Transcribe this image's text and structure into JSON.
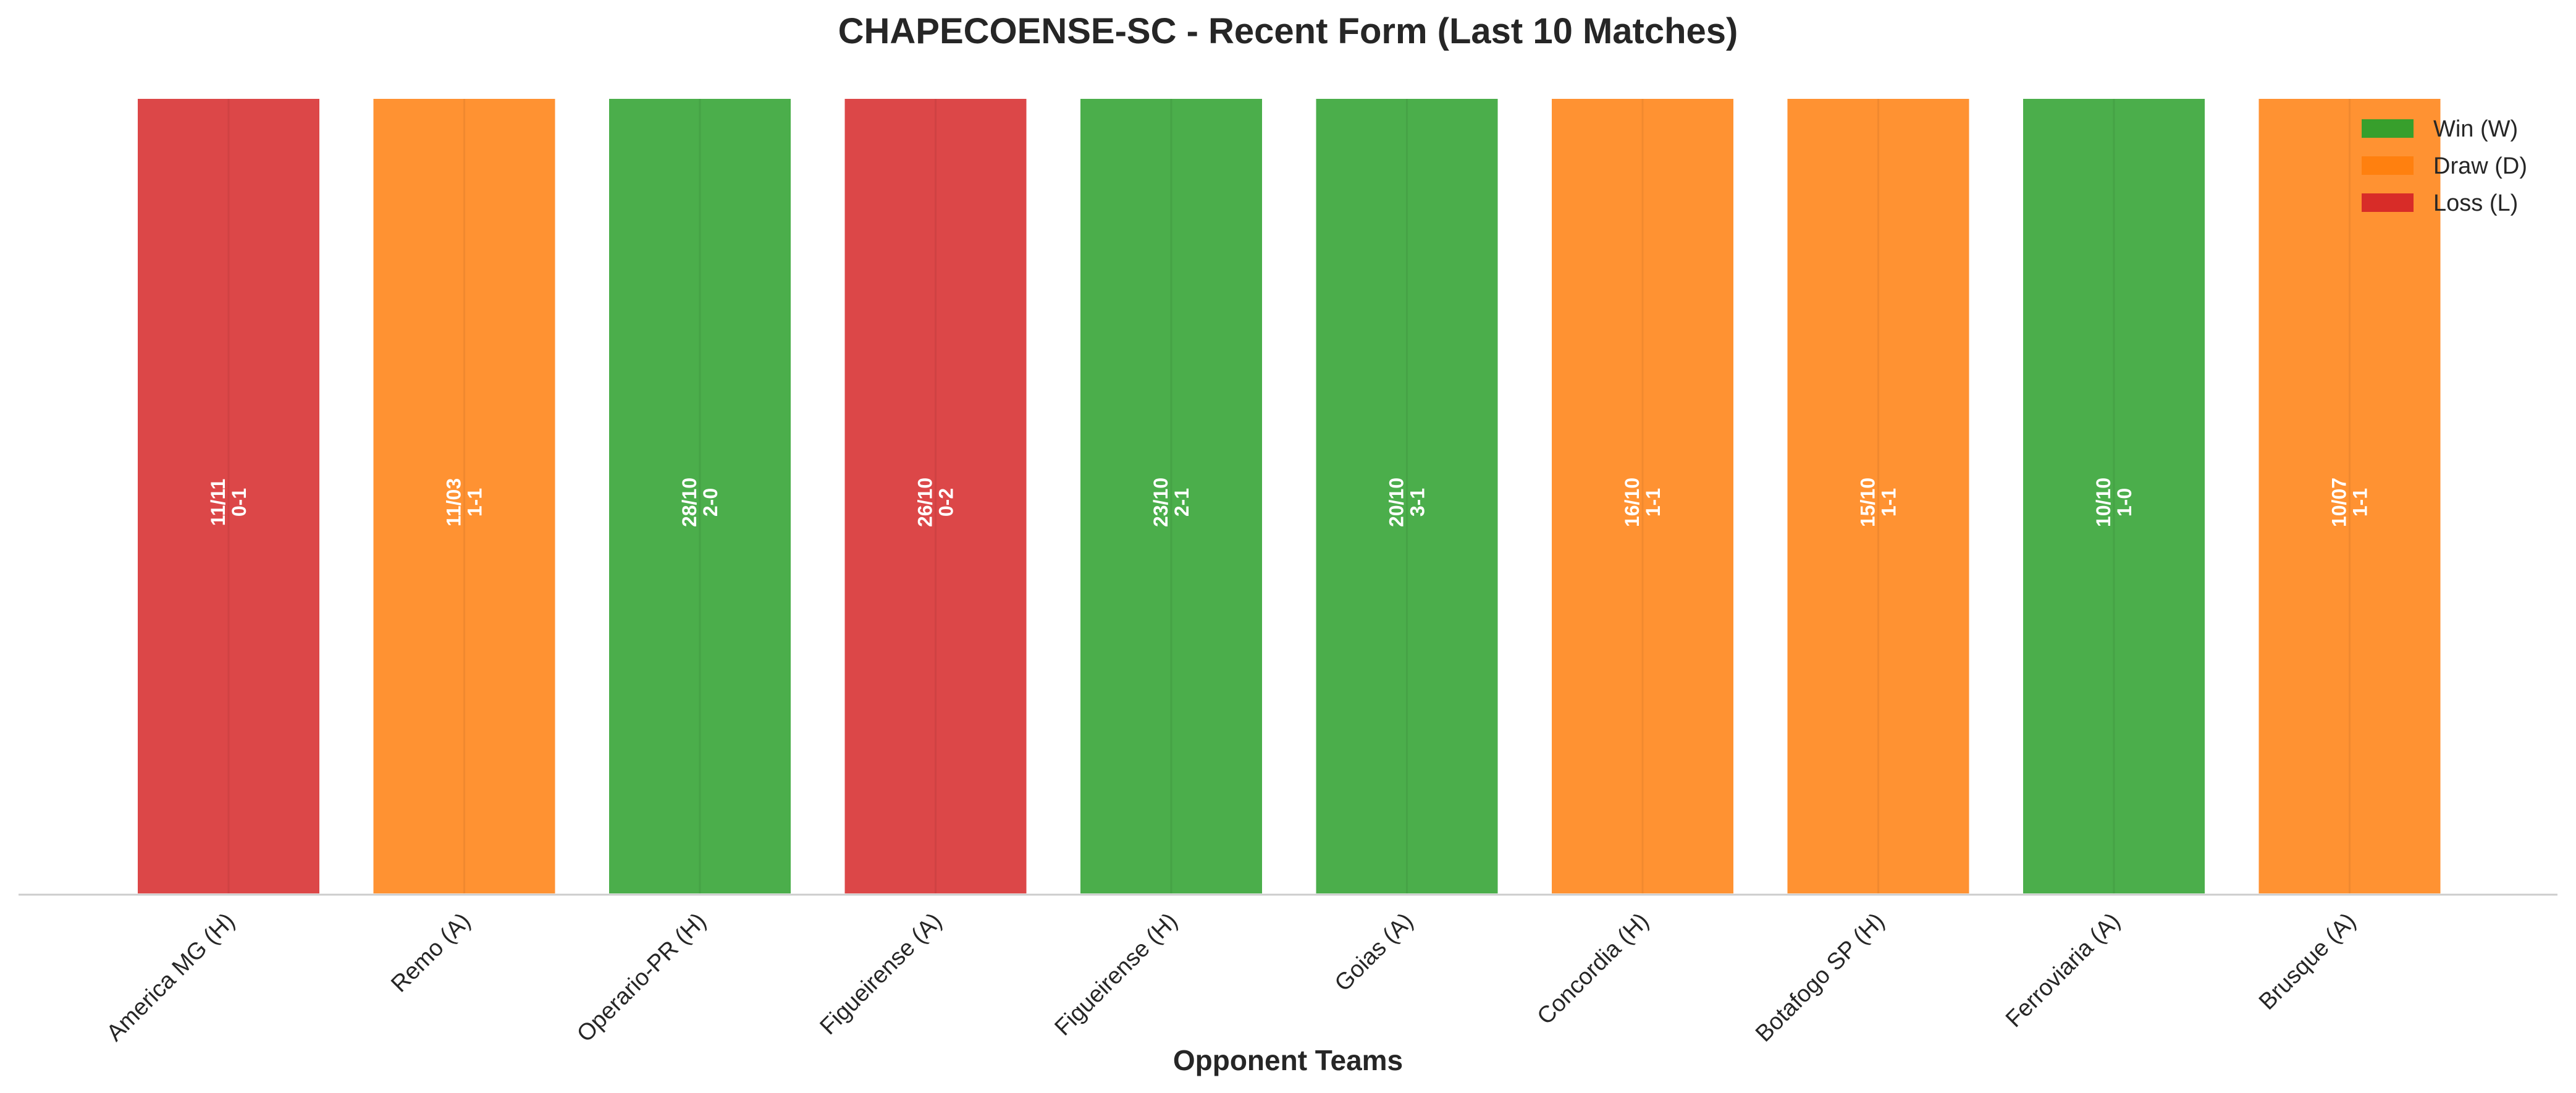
{
  "chart_data": {
    "type": "bar",
    "title": "CHAPECOENSE-SC - Recent Form (Last 10 Matches)",
    "xlabel": "Opponent Teams",
    "ylabel": "",
    "categories": [
      "America MG (H)",
      "Remo (A)",
      "Operario-PR (H)",
      "Figueirense (A)",
      "Figueirense (H)",
      "Goias (A)",
      "Concordia (H)",
      "Botafogo SP (H)",
      "Ferroviaria (A)",
      "Brusque (A)"
    ],
    "values": [
      1,
      1,
      1,
      1,
      1,
      1,
      1,
      1,
      1,
      1
    ],
    "results": [
      "L",
      "D",
      "W",
      "L",
      "W",
      "W",
      "D",
      "D",
      "W",
      "D"
    ],
    "dates": [
      "11/11",
      "11/03",
      "28/10",
      "26/10",
      "23/10",
      "20/10",
      "16/10",
      "15/10",
      "10/10",
      "10/07"
    ],
    "scores": [
      "0-1",
      "1-1",
      "2-0",
      "0-2",
      "2-1",
      "3-1",
      "1-1",
      "1-1",
      "1-0",
      "1-1"
    ],
    "ylim": [
      0,
      1
    ],
    "grid": false,
    "legend": {
      "placement": "top-right",
      "entries": [
        {
          "key": "W",
          "label": "Win (W)",
          "color": "#2ca02c"
        },
        {
          "key": "D",
          "label": "Draw (D)",
          "color": "#ff7f0e"
        },
        {
          "key": "L",
          "label": "Loss (L)",
          "color": "#d62728"
        }
      ]
    },
    "colors": {
      "W": "#2ca02c",
      "D": "#ff7f0e",
      "L": "#d62728"
    }
  }
}
